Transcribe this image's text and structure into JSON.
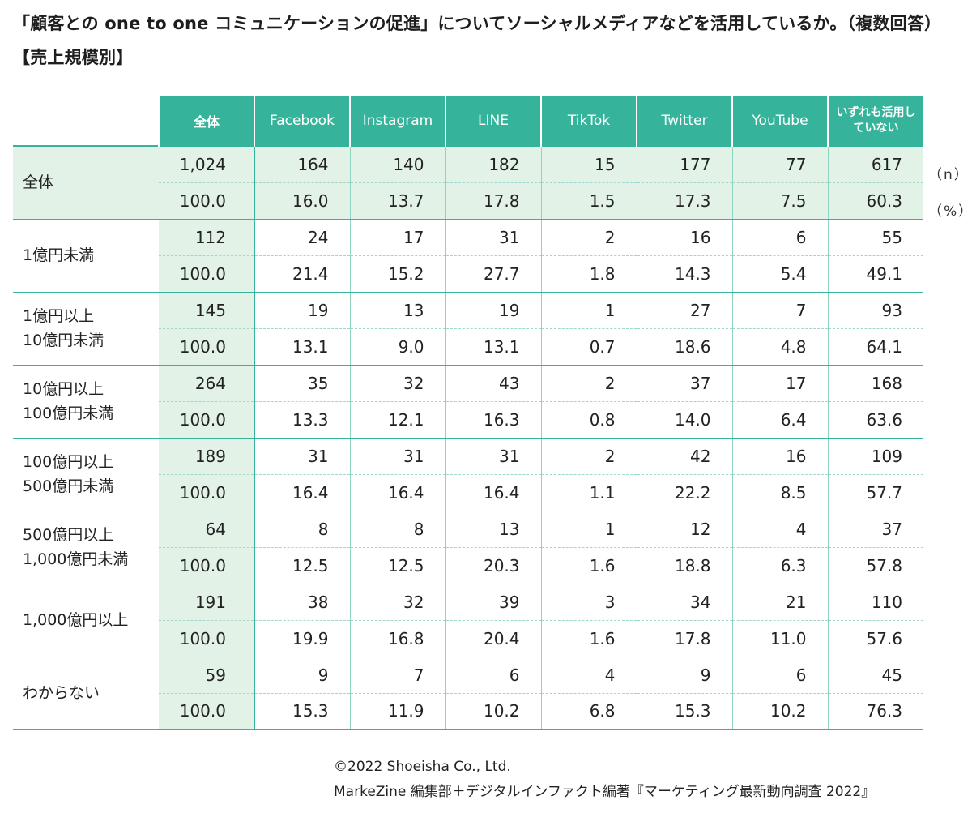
{
  "title": "「顧客との one to one コミュニケーションの促進」についてソーシャルメディアなどを活用しているか。（複数回答）【売上規模別】",
  "units": {
    "n": "（n）",
    "percent": "（%）"
  },
  "credits": [
    "©2022 Shoeisha Co., Ltd.",
    "MarkeZine 編集部＋デジタルインファクト編著『マーケティング最新動向調査 2022』"
  ],
  "colors": {
    "header": "#35b49b",
    "total_fill": "#e3f2e6",
    "rule": "#35b49b"
  },
  "chart_data": {
    "type": "table",
    "title": "「顧客との one to one コミュニケーションの促進」についてソーシャルメディアなどを活用しているか。（複数回答）【売上規模別】",
    "columns": [
      "全体",
      "Facebook",
      "Instagram",
      "LINE",
      "TikTok",
      "Twitter",
      "YouTube",
      "いずれも活用していない"
    ],
    "rows": [
      {
        "label": "全体",
        "n": [
          "1,024",
          "164",
          "140",
          "182",
          "15",
          "177",
          "77",
          "617"
        ],
        "pct": [
          "100.0",
          "16.0",
          "13.7",
          "17.8",
          "1.5",
          "17.3",
          "7.5",
          "60.3"
        ]
      },
      {
        "label": "1億円未満",
        "n": [
          "112",
          "24",
          "17",
          "31",
          "2",
          "16",
          "6",
          "55"
        ],
        "pct": [
          "100.0",
          "21.4",
          "15.2",
          "27.7",
          "1.8",
          "14.3",
          "5.4",
          "49.1"
        ]
      },
      {
        "label": "1億円以上\n10億円未満",
        "n": [
          "145",
          "19",
          "13",
          "19",
          "1",
          "27",
          "7",
          "93"
        ],
        "pct": [
          "100.0",
          "13.1",
          "9.0",
          "13.1",
          "0.7",
          "18.6",
          "4.8",
          "64.1"
        ]
      },
      {
        "label": "10億円以上\n100億円未満",
        "n": [
          "264",
          "35",
          "32",
          "43",
          "2",
          "37",
          "17",
          "168"
        ],
        "pct": [
          "100.0",
          "13.3",
          "12.1",
          "16.3",
          "0.8",
          "14.0",
          "6.4",
          "63.6"
        ]
      },
      {
        "label": "100億円以上\n500億円未満",
        "n": [
          "189",
          "31",
          "31",
          "31",
          "2",
          "42",
          "16",
          "109"
        ],
        "pct": [
          "100.0",
          "16.4",
          "16.4",
          "16.4",
          "1.1",
          "22.2",
          "8.5",
          "57.7"
        ]
      },
      {
        "label": "500億円以上\n1,000億円未満",
        "n": [
          "64",
          "8",
          "8",
          "13",
          "1",
          "12",
          "4",
          "37"
        ],
        "pct": [
          "100.0",
          "12.5",
          "12.5",
          "20.3",
          "1.6",
          "18.8",
          "6.3",
          "57.8"
        ]
      },
      {
        "label": "1,000億円以上",
        "n": [
          "191",
          "38",
          "32",
          "39",
          "3",
          "34",
          "21",
          "110"
        ],
        "pct": [
          "100.0",
          "19.9",
          "16.8",
          "20.4",
          "1.6",
          "17.8",
          "11.0",
          "57.6"
        ]
      },
      {
        "label": "わからない",
        "n": [
          "59",
          "9",
          "7",
          "6",
          "4",
          "9",
          "6",
          "45"
        ],
        "pct": [
          "100.0",
          "15.3",
          "11.9",
          "10.2",
          "6.8",
          "15.3",
          "10.2",
          "76.3"
        ]
      }
    ]
  }
}
